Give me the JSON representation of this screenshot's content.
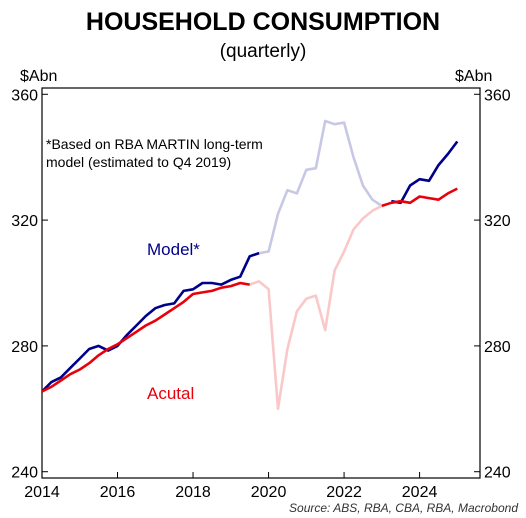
{
  "chart_data": {
    "type": "line",
    "title": "HOUSEHOLD CONSUMPTION",
    "subtitle": "(quarterly)",
    "yunit_left": "$Abn",
    "yunit_right": "$Abn",
    "annotation_lines": [
      "*Based on RBA MARTIN long-term",
      "model (estimated to Q4 2019)"
    ],
    "source": "Source: ABS, RBA, CBA, RBA, Macrobond",
    "xlim": [
      2014,
      2025.6
    ],
    "ylim": [
      238,
      362
    ],
    "x_ticks": [
      "2014",
      "2016",
      "2018",
      "2020",
      "2022",
      "2024"
    ],
    "y_ticks": [
      "240",
      "280",
      "320",
      "360"
    ],
    "grid": false,
    "series": [
      {
        "name": "Model*",
        "color": "#00008b",
        "faded_color": "#c8c8e6",
        "faded_x_range": [
          2019.75,
          2023.1
        ],
        "x": [
          2014.0,
          2014.25,
          2014.5,
          2014.75,
          2015.0,
          2015.25,
          2015.5,
          2015.75,
          2016.0,
          2016.25,
          2016.5,
          2016.75,
          2017.0,
          2017.25,
          2017.5,
          2017.75,
          2018.0,
          2018.25,
          2018.5,
          2018.75,
          2019.0,
          2019.25,
          2019.5,
          2019.75,
          2020.0,
          2020.25,
          2020.5,
          2020.75,
          2021.0,
          2021.25,
          2021.5,
          2021.75,
          2022.0,
          2022.25,
          2022.5,
          2022.75,
          2023.0,
          2023.25,
          2023.5,
          2023.75,
          2024.0,
          2024.25,
          2024.5,
          2024.75,
          2025.0
        ],
        "y": [
          265.5,
          268.5,
          270.0,
          273.0,
          276.0,
          279.0,
          280.0,
          278.5,
          280.0,
          283.5,
          286.5,
          289.5,
          292.0,
          293.0,
          293.5,
          297.5,
          298.0,
          300.0,
          300.0,
          299.5,
          301.0,
          302.0,
          308.5,
          309.5,
          310.0,
          322.0,
          329.5,
          328.5,
          336.0,
          336.5,
          351.5,
          350.5,
          351.0,
          340.0,
          331.0,
          326.5,
          324.5,
          326.0,
          325.5,
          331.0,
          333.0,
          332.5,
          337.5,
          341.0,
          345.0
        ]
      },
      {
        "name": "Acutal",
        "color": "#e8000b",
        "faded_color": "#fac8c8",
        "faded_x_range": [
          2019.5,
          2023.0
        ],
        "x": [
          2014.0,
          2014.25,
          2014.5,
          2014.75,
          2015.0,
          2015.25,
          2015.5,
          2015.75,
          2016.0,
          2016.25,
          2016.5,
          2016.75,
          2017.0,
          2017.25,
          2017.5,
          2017.75,
          2018.0,
          2018.25,
          2018.5,
          2018.75,
          2019.0,
          2019.25,
          2019.5,
          2019.75,
          2020.0,
          2020.25,
          2020.5,
          2020.75,
          2021.0,
          2021.25,
          2021.5,
          2021.75,
          2022.0,
          2022.25,
          2022.5,
          2022.75,
          2023.0,
          2023.25,
          2023.5,
          2023.75,
          2024.0,
          2024.25,
          2024.5,
          2024.75,
          2025.0
        ],
        "y": [
          265.5,
          267.0,
          269.0,
          271.0,
          272.5,
          274.5,
          277.0,
          279.0,
          280.5,
          282.5,
          284.5,
          286.5,
          288.0,
          290.0,
          292.0,
          294.0,
          296.5,
          297.0,
          297.5,
          298.5,
          299.0,
          300.0,
          299.5,
          300.5,
          298.0,
          260.0,
          279.0,
          291.0,
          295.0,
          296.0,
          285.0,
          304.0,
          310.0,
          317.0,
          320.5,
          323.0,
          324.5,
          325.5,
          326.0,
          325.5,
          327.5,
          327.0,
          326.5,
          328.5,
          330.0
        ]
      }
    ]
  }
}
